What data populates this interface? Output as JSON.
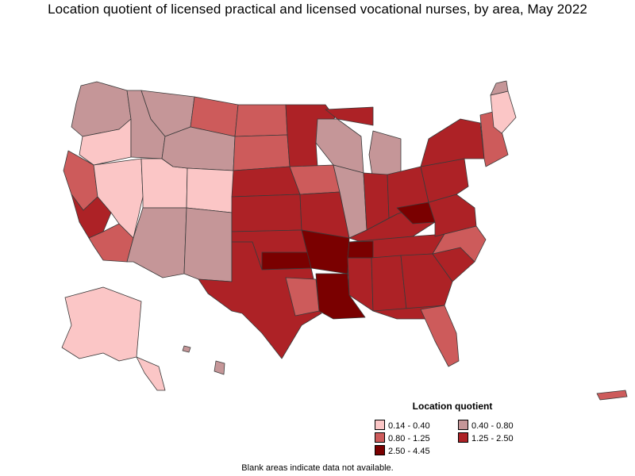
{
  "title": "Location quotient of licensed practical and licensed vocational nurses, by area, May 2022",
  "legend": {
    "title": "Location quotient",
    "items": [
      {
        "label": "0.14 - 0.40",
        "color": "#fbc6c6"
      },
      {
        "label": "0.40 - 0.80",
        "color": "#c59698"
      },
      {
        "label": "0.80 - 1.25",
        "color": "#cd5b5b"
      },
      {
        "label": "1.25 - 2.50",
        "color": "#ad2226"
      },
      {
        "label": "2.50 - 4.45",
        "color": "#7a0000"
      }
    ]
  },
  "footnote": "Blank areas indicate data not available."
}
